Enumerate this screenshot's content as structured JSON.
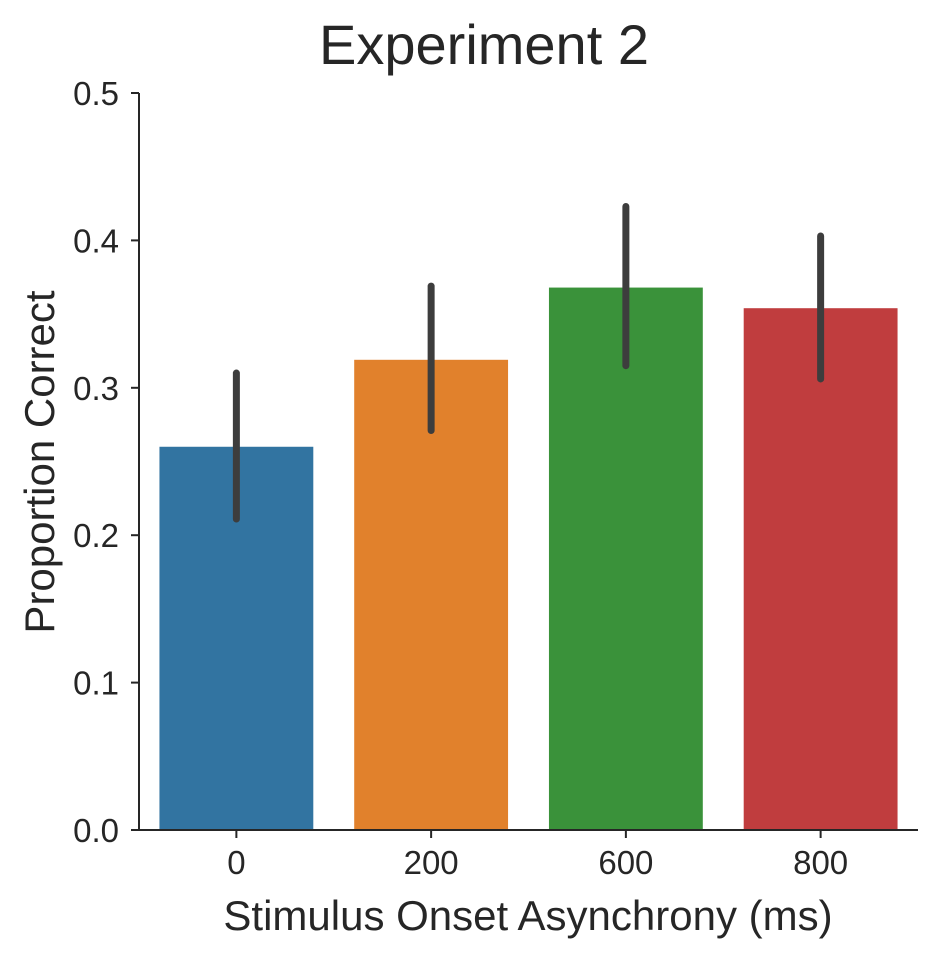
{
  "chart_data": {
    "type": "bar",
    "title": "Experiment 2",
    "xlabel": "Stimulus Onset Asynchrony (ms)",
    "ylabel": "Proportion Correct",
    "categories": [
      "0",
      "200",
      "600",
      "800"
    ],
    "values": [
      0.26,
      0.319,
      0.368,
      0.354
    ],
    "error_bars": [
      {
        "low": 0.211,
        "high": 0.31
      },
      {
        "low": 0.271,
        "high": 0.369
      },
      {
        "low": 0.315,
        "high": 0.423
      },
      {
        "low": 0.306,
        "high": 0.403
      }
    ],
    "colors": [
      "#3274a1",
      "#e1812c",
      "#3a923a",
      "#c03d3e"
    ],
    "error_color": "#3d3d3d",
    "ylim": [
      0,
      0.5
    ],
    "yticks": [
      "0.0",
      "0.1",
      "0.2",
      "0.3",
      "0.4",
      "0.5"
    ],
    "grid": false,
    "legend": "none"
  }
}
